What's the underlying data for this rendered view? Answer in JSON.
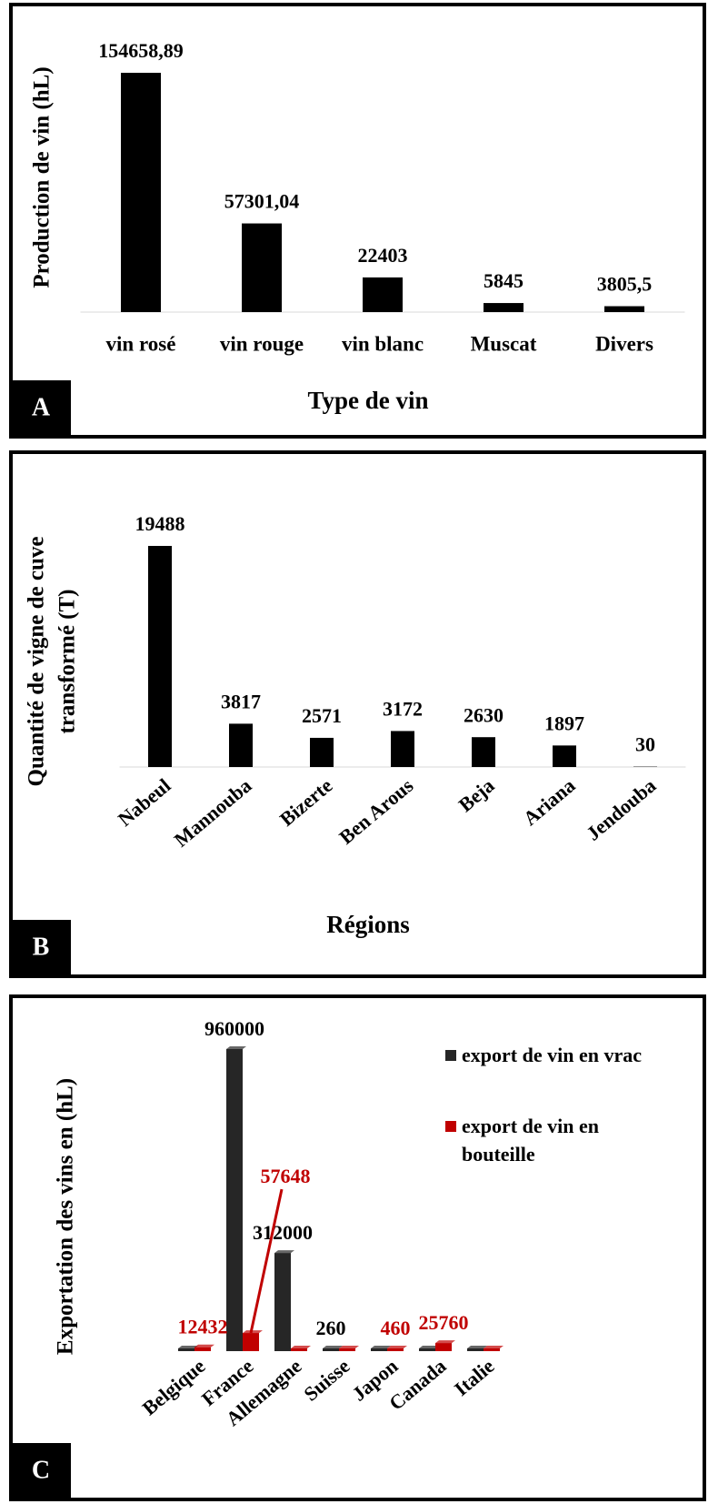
{
  "chart_data": [
    {
      "type": "bar",
      "label": "A",
      "y_label": [
        "Production de vin (hL)"
      ],
      "x_label": "Type de vin",
      "categories": [
        "vin rosé",
        "vin rouge",
        "vin blanc",
        "Muscat",
        "Divers"
      ],
      "values": [
        154658.89,
        57301.04,
        22403,
        5845,
        3805.5
      ],
      "value_labels": [
        "154658,89",
        "57301,04",
        "22403",
        "5845",
        "3805,5"
      ],
      "color": "#000000"
    },
    {
      "type": "bar",
      "label": "B",
      "y_label": [
        "Quantité de vigne de cuve",
        "transformé  (T)"
      ],
      "x_label": "Régions",
      "categories": [
        "Nabeul",
        "Mannouba",
        "Bizerte",
        "Ben Arous",
        "Beja",
        "Ariana",
        "Jendouba"
      ],
      "values": [
        19488,
        3817,
        2571,
        3172,
        2630,
        1897,
        30
      ],
      "color": "#000000"
    },
    {
      "type": "grouped_bar",
      "label": "C",
      "y_label": [
        "Exportation des vins en (hL)"
      ],
      "legend": "upper right",
      "categories": [
        "Belgique",
        "France",
        "Allemagne",
        "Suisse",
        "Japon",
        "Canada",
        "Italie"
      ],
      "series": [
        {
          "name": "export de vin en vrac",
          "color": "#262626",
          "values": [
            8000,
            960000,
            312000,
            260,
            3000,
            3000,
            2000
          ],
          "value_labels": [
            null,
            "960000",
            "312000",
            "260",
            null,
            null,
            null
          ]
        },
        {
          "name": "export de vin en bouteille",
          "color": "#c00000",
          "values": [
            12432,
            57648,
            1000,
            500,
            460,
            25760,
            2000
          ],
          "value_labels": [
            "12432",
            "57648",
            null,
            null,
            "460",
            "25760",
            null
          ]
        }
      ]
    }
  ]
}
